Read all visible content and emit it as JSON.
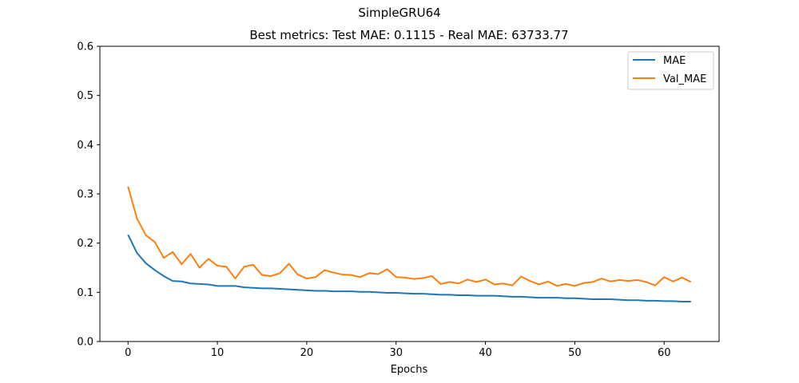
{
  "chart_data": {
    "type": "line",
    "suptitle": "SimpleGRU64",
    "title": "Best metrics: Test MAE: 0.1115 - Real MAE: 63733.77",
    "xlabel": "Epochs",
    "ylabel": "",
    "xlim": [
      -3.15,
      66.15
    ],
    "ylim": [
      0.0,
      0.6
    ],
    "xticks": [
      0,
      10,
      20,
      30,
      40,
      50,
      60
    ],
    "yticks": [
      0.0,
      0.1,
      0.2,
      0.3,
      0.4,
      0.5,
      0.6
    ],
    "xtick_labels": [
      "0",
      "10",
      "20",
      "30",
      "40",
      "50",
      "60"
    ],
    "ytick_labels": [
      "0.0",
      "0.1",
      "0.2",
      "0.3",
      "0.4",
      "0.5",
      "0.6"
    ],
    "legend_position": "top-right",
    "grid": false,
    "series": [
      {
        "name": "MAE",
        "color": "#1f77b4",
        "values": [
          0.217,
          0.18,
          0.159,
          0.145,
          0.133,
          0.123,
          0.122,
          0.118,
          0.117,
          0.116,
          0.113,
          0.113,
          0.113,
          0.11,
          0.109,
          0.108,
          0.108,
          0.107,
          0.106,
          0.105,
          0.104,
          0.103,
          0.103,
          0.102,
          0.102,
          0.102,
          0.101,
          0.101,
          0.1,
          0.099,
          0.099,
          0.098,
          0.097,
          0.097,
          0.096,
          0.095,
          0.095,
          0.094,
          0.094,
          0.093,
          0.093,
          0.093,
          0.092,
          0.091,
          0.091,
          0.09,
          0.089,
          0.089,
          0.089,
          0.088,
          0.088,
          0.087,
          0.086,
          0.086,
          0.086,
          0.085,
          0.084,
          0.084,
          0.083,
          0.083,
          0.082,
          0.082,
          0.081,
          0.081
        ]
      },
      {
        "name": "Val_MAE",
        "color": "#ff7f0e",
        "values": [
          0.315,
          0.25,
          0.216,
          0.202,
          0.17,
          0.182,
          0.157,
          0.178,
          0.15,
          0.168,
          0.154,
          0.152,
          0.128,
          0.152,
          0.156,
          0.135,
          0.133,
          0.139,
          0.158,
          0.136,
          0.128,
          0.131,
          0.145,
          0.14,
          0.136,
          0.135,
          0.131,
          0.139,
          0.137,
          0.147,
          0.131,
          0.13,
          0.127,
          0.129,
          0.133,
          0.117,
          0.121,
          0.118,
          0.126,
          0.121,
          0.126,
          0.116,
          0.118,
          0.114,
          0.132,
          0.123,
          0.116,
          0.122,
          0.113,
          0.117,
          0.113,
          0.119,
          0.121,
          0.128,
          0.122,
          0.125,
          0.123,
          0.125,
          0.121,
          0.114,
          0.131,
          0.122,
          0.13,
          0.121
        ]
      }
    ]
  }
}
